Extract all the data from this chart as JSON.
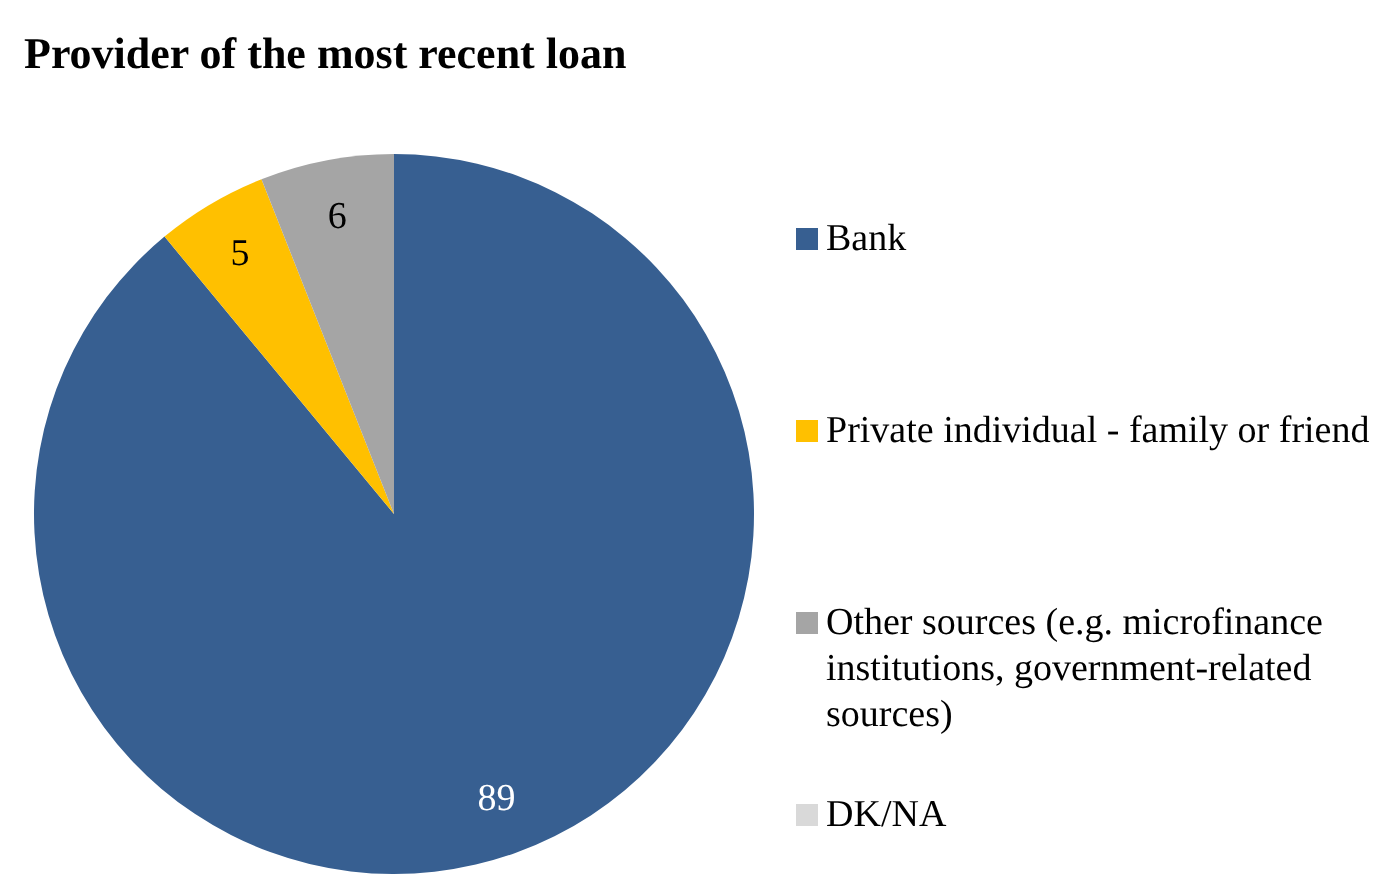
{
  "chart_data": {
    "type": "pie",
    "title": "Provider of the most recent loan",
    "categories": [
      "Bank",
      "Private individual - family or friend",
      "Other sources (e.g. microfinance institutions, government-related sources)",
      "DK/NA"
    ],
    "values": [
      89,
      5,
      6,
      0
    ],
    "colors": [
      "#375f91",
      "#ffc000",
      "#a5a5a5",
      "#d9d9d9"
    ],
    "value_labels": [
      "89",
      "5",
      "6",
      null
    ],
    "legend": "right"
  }
}
